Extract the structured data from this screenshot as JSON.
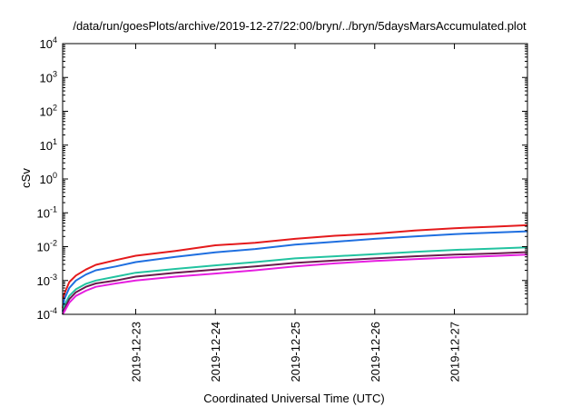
{
  "chart_data": {
    "type": "line",
    "title": "/data/run/goesPlots/archive/2019-12-27/22:00/bryn/../bryn/5daysMarsAccumulated.plot",
    "xlabel": "Coordinated Universal Time (UTC)",
    "ylabel": "cSv",
    "yscale": "log",
    "ylim": [
      0.0001,
      10000
    ],
    "xlim": [
      "2019-12-22 02:00",
      "2019-12-27 22:00"
    ],
    "y_ticks": [
      {
        "base": "10",
        "exp": "-4",
        "value": 0.0001
      },
      {
        "base": "10",
        "exp": "-3",
        "value": 0.001
      },
      {
        "base": "10",
        "exp": "-2",
        "value": 0.01
      },
      {
        "base": "10",
        "exp": "-1",
        "value": 0.1
      },
      {
        "base": "10",
        "exp": "0",
        "value": 1
      },
      {
        "base": "10",
        "exp": "1",
        "value": 10
      },
      {
        "base": "10",
        "exp": "2",
        "value": 100
      },
      {
        "base": "10",
        "exp": "3",
        "value": 1000
      },
      {
        "base": "10",
        "exp": "4",
        "value": 10000
      }
    ],
    "x_ticks": [
      "2019-12-23",
      "2019-12-24",
      "2019-12-25",
      "2019-12-26",
      "2019-12-27"
    ],
    "grid": false,
    "legend": "none",
    "x": [
      "2019-12-22 02:00",
      "2019-12-22 02:30",
      "2019-12-22 04:00",
      "2019-12-22 06:00",
      "2019-12-22 09:00",
      "2019-12-22 12:00",
      "2019-12-22 18:00",
      "2019-12-23 00:00",
      "2019-12-23 12:00",
      "2019-12-24 00:00",
      "2019-12-24 12:00",
      "2019-12-25 00:00",
      "2019-12-25 12:00",
      "2019-12-26 00:00",
      "2019-12-26 12:00",
      "2019-12-27 00:00",
      "2019-12-27 12:00",
      "2019-12-27 22:00"
    ],
    "series": [
      {
        "color": "#e41a1c",
        "values": [
          0.00015,
          0.0004,
          0.0009,
          0.0014,
          0.0021,
          0.0029,
          0.004,
          0.0054,
          0.0075,
          0.011,
          0.013,
          0.017,
          0.021,
          0.024,
          0.03,
          0.035,
          0.039,
          0.043
        ]
      },
      {
        "color": "#1f6fe0",
        "values": [
          0.00012,
          0.00028,
          0.0006,
          0.001,
          0.0015,
          0.002,
          0.0026,
          0.0035,
          0.005,
          0.0068,
          0.0085,
          0.0115,
          0.014,
          0.017,
          0.02,
          0.0235,
          0.026,
          0.0285
        ]
      },
      {
        "color": "#22c3a0",
        "values": [
          0.0001,
          0.00018,
          0.00035,
          0.00055,
          0.0008,
          0.001,
          0.0013,
          0.0017,
          0.0022,
          0.0028,
          0.0035,
          0.0045,
          0.0052,
          0.006,
          0.007,
          0.008,
          0.0088,
          0.0095
        ]
      },
      {
        "color": "#6a1b4d",
        "values": [
          0.0001,
          0.00014,
          0.00028,
          0.00045,
          0.00065,
          0.00082,
          0.001,
          0.0013,
          0.0017,
          0.0021,
          0.0026,
          0.0033,
          0.0039,
          0.0045,
          0.0052,
          0.0058,
          0.0063,
          0.0069
        ]
      },
      {
        "color": "#e61ee0",
        "values": [
          0.0001,
          0.00012,
          0.00022,
          0.00035,
          0.0005,
          0.00065,
          0.00082,
          0.001,
          0.0013,
          0.0016,
          0.002,
          0.0026,
          0.0032,
          0.0038,
          0.0043,
          0.0048,
          0.0053,
          0.0058
        ]
      }
    ]
  }
}
